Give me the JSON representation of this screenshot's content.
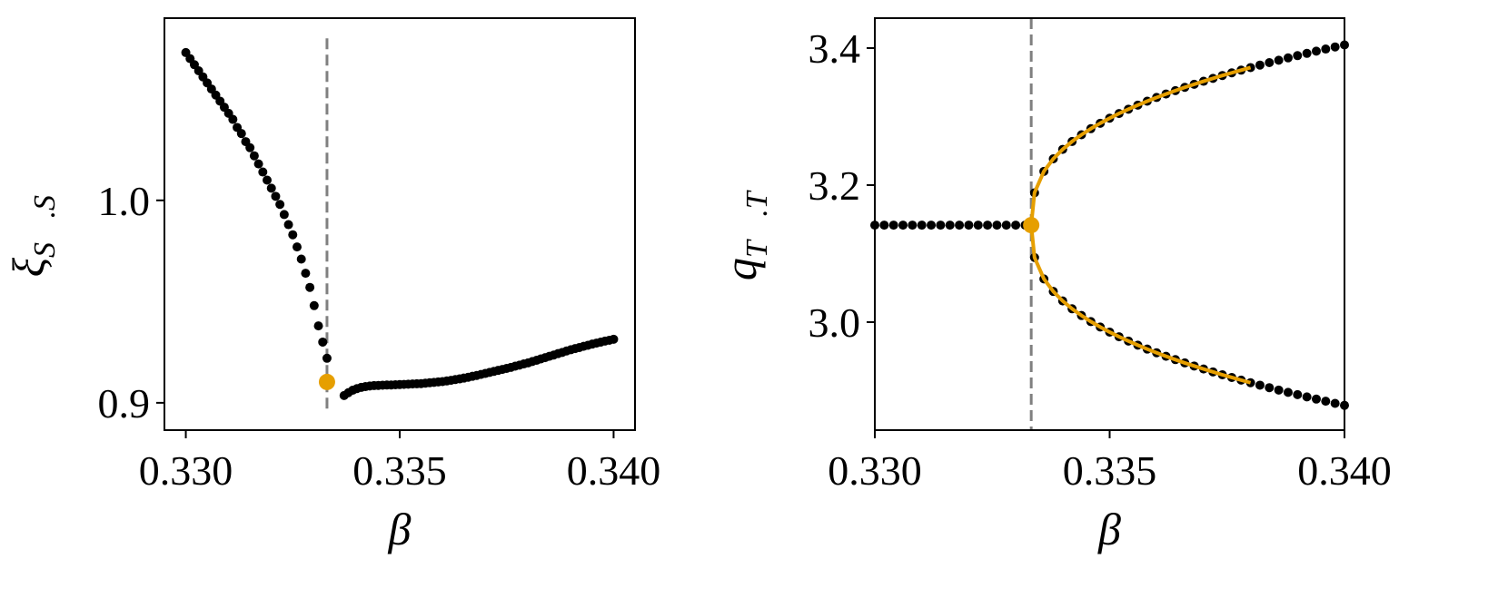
{
  "chart_data": [
    {
      "type": "scatter",
      "xlabel": "β",
      "ylabel": {
        "main": "ξ",
        "sub": "S⃗.S⃗"
      },
      "xlim": [
        0.3295,
        0.3405
      ],
      "ylim": [
        0.8865,
        1.09
      ],
      "xticks": [
        {
          "value": 0.33,
          "label": "0.330"
        },
        {
          "value": 0.335,
          "label": "0.335"
        },
        {
          "value": 0.34,
          "label": "0.340"
        }
      ],
      "yticks": [
        0.9,
        {
          "value": 1.0,
          "label": "1.0"
        }
      ],
      "vline": {
        "x": 0.3333,
        "y_range": [
          0.895,
          1.08
        ],
        "color": "#808080"
      },
      "series": [
        {
          "color": "#000000",
          "x": [
            0.33,
            0.3301,
            0.3302,
            0.3303,
            0.3304,
            0.3305,
            0.3306,
            0.3307,
            0.3308,
            0.3309,
            0.331,
            0.3311,
            0.3312,
            0.3313,
            0.3314,
            0.3315,
            0.3316,
            0.3317,
            0.3318,
            0.3319,
            0.332,
            0.3321,
            0.3322,
            0.3323,
            0.3324,
            0.3325,
            0.3326,
            0.3327,
            0.3328,
            0.3329,
            0.333,
            0.3331,
            0.3332,
            0.3333
          ],
          "values": [
            1.073,
            1.07,
            1.067,
            1.064,
            1.061,
            1.058,
            1.055,
            1.052,
            1.049,
            1.046,
            1.043,
            1.04,
            1.036,
            1.033,
            1.029,
            1.026,
            1.022,
            1.018,
            1.014,
            1.01,
            1.006,
            1.002,
            0.998,
            0.993,
            0.988,
            0.983,
            0.977,
            0.971,
            0.964,
            0.957,
            0.948,
            0.938,
            0.93,
            0.922
          ]
        },
        {
          "color": "#000000",
          "x": [
            0.3337,
            0.3338,
            0.3339,
            0.334,
            0.3341,
            0.3342,
            0.3343,
            0.3344,
            0.3345,
            0.3346,
            0.3347,
            0.3348,
            0.3349,
            0.335,
            0.3351,
            0.3352,
            0.3353,
            0.3354,
            0.3355,
            0.3356,
            0.3357,
            0.3358,
            0.3359,
            0.336,
            0.3361,
            0.3362,
            0.3363,
            0.3364,
            0.3365,
            0.3366,
            0.3367,
            0.3368,
            0.3369,
            0.337,
            0.3371,
            0.3372,
            0.3373,
            0.3374,
            0.3375,
            0.3376,
            0.3377,
            0.3378,
            0.3379,
            0.338,
            0.3381,
            0.3382,
            0.3383,
            0.3384,
            0.3385,
            0.3386,
            0.3387,
            0.3388,
            0.3389,
            0.339,
            0.3391,
            0.3392,
            0.3393,
            0.3394,
            0.3395,
            0.3396,
            0.3397,
            0.3398,
            0.3399,
            0.34
          ],
          "values": [
            0.9036,
            0.905,
            0.9062,
            0.907,
            0.9076,
            0.908,
            0.9083,
            0.9085,
            0.9086,
            0.9087,
            0.9088,
            0.9088,
            0.9089,
            0.909,
            0.9091,
            0.9092,
            0.9093,
            0.9094,
            0.9095,
            0.9097,
            0.9099,
            0.9101,
            0.9103,
            0.9105,
            0.9108,
            0.9111,
            0.9115,
            0.9118,
            0.9122,
            0.9126,
            0.9131,
            0.9135,
            0.914,
            0.9145,
            0.915,
            0.9155,
            0.916,
            0.9165,
            0.917,
            0.9175,
            0.9181,
            0.9186,
            0.9192,
            0.9197,
            0.9204,
            0.921,
            0.9217,
            0.9223,
            0.923,
            0.9236,
            0.9243,
            0.9249,
            0.9256,
            0.9262,
            0.9268,
            0.9273,
            0.9279,
            0.9284,
            0.929,
            0.9295,
            0.93,
            0.9305,
            0.9309,
            0.9314
          ]
        },
        {
          "color": "#e69f00",
          "size": "large",
          "x": [
            0.3333
          ],
          "values": [
            0.9103
          ]
        }
      ]
    },
    {
      "type": "scatter",
      "xlabel": "β",
      "ylabel": {
        "main": "q",
        "sub": "T⃗.T⃗"
      },
      "xlim": [
        0.33,
        0.34
      ],
      "ylim": [
        2.8424,
        3.4437
      ],
      "xticks": [
        {
          "value": 0.33,
          "label": "0.330"
        },
        {
          "value": 0.335,
          "label": "0.335"
        },
        {
          "value": 0.34,
          "label": "0.340"
        }
      ],
      "yticks": [
        {
          "value": 3.0,
          "label": "3.0"
        },
        {
          "value": 3.2,
          "label": "3.2"
        },
        {
          "value": 3.4,
          "label": "3.4"
        }
      ],
      "vline": {
        "x": 0.33333,
        "color": "#808080"
      },
      "series": [
        {
          "color": "#000000",
          "x": [
            0.33,
            0.3302,
            0.3304,
            0.3306,
            0.3308,
            0.331,
            0.3312,
            0.3314,
            0.3316,
            0.3318,
            0.332,
            0.3322,
            0.3324,
            0.3326,
            0.3328,
            0.333,
            0.3332
          ],
          "values": [
            3.1416,
            3.1416,
            3.1416,
            3.1416,
            3.1416,
            3.1416,
            3.1416,
            3.1416,
            3.1416,
            3.1416,
            3.1416,
            3.1416,
            3.1416,
            3.1416,
            3.1416,
            3.1416,
            3.1416
          ]
        },
        {
          "color": "#000000",
          "x": [
            0.3334,
            0.3336,
            0.3338,
            0.334,
            0.3342,
            0.3344,
            0.3346,
            0.3348,
            0.335,
            0.3352,
            0.3354,
            0.3356,
            0.3358,
            0.336,
            0.3362,
            0.3364,
            0.3366,
            0.3368,
            0.337,
            0.3372,
            0.3374,
            0.3376,
            0.3378,
            0.338,
            0.3382,
            0.3384,
            0.3386,
            0.3388,
            0.339,
            0.3392,
            0.3394,
            0.3396,
            0.3398,
            0.34
          ],
          "values": [
            3.1888,
            3.2201,
            3.2384,
            3.2522,
            3.2637,
            3.2735,
            3.2824,
            3.2903,
            3.2977,
            3.3045,
            3.3108,
            3.3168,
            3.3225,
            3.3279,
            3.333,
            3.3379,
            3.3427,
            3.3472,
            3.3516,
            3.3558,
            3.36,
            3.3639,
            3.3678,
            3.3716,
            3.3752,
            3.3788,
            3.3823,
            3.3857,
            3.389,
            3.3923,
            3.3955,
            3.3986,
            3.4017,
            3.4046
          ]
        },
        {
          "color": "#000000",
          "x": [
            0.3334,
            0.3336,
            0.3338,
            0.334,
            0.3342,
            0.3344,
            0.3346,
            0.3348,
            0.335,
            0.3352,
            0.3354,
            0.3356,
            0.3358,
            0.336,
            0.3362,
            0.3364,
            0.3366,
            0.3368,
            0.337,
            0.3372,
            0.3374,
            0.3376,
            0.3378,
            0.338,
            0.3382,
            0.3384,
            0.3386,
            0.3388,
            0.339,
            0.3392,
            0.3394,
            0.3396,
            0.3398,
            0.34
          ],
          "values": [
            3.0944,
            3.0631,
            3.0448,
            3.031,
            3.0195,
            3.0097,
            3.0008,
            2.9929,
            2.9855,
            2.9787,
            2.9724,
            2.9664,
            2.9607,
            2.9553,
            2.9502,
            2.9453,
            2.9405,
            2.936,
            2.9316,
            2.9274,
            2.9232,
            2.9193,
            2.9154,
            2.9116,
            2.908,
            2.9044,
            2.9009,
            2.8975,
            2.8942,
            2.8909,
            2.8877,
            2.8846,
            2.8815,
            2.8786
          ]
        },
        {
          "color": "#e69f00",
          "type": "line",
          "x": [
            0.33333,
            0.3334,
            0.3336,
            0.3338,
            0.334,
            0.3342,
            0.3344,
            0.3346,
            0.3348,
            0.335,
            0.3352,
            0.3354,
            0.3356,
            0.3358,
            0.336,
            0.3362,
            0.3364,
            0.3366,
            0.3368,
            0.337,
            0.3372,
            0.3374,
            0.3376,
            0.3378,
            0.338
          ],
          "values": [
            3.1416,
            3.1888,
            3.2201,
            3.2384,
            3.2522,
            3.2637,
            3.2735,
            3.2824,
            3.2903,
            3.2977,
            3.3045,
            3.3108,
            3.3168,
            3.3225,
            3.3279,
            3.333,
            3.3379,
            3.3427,
            3.3472,
            3.3516,
            3.3558,
            3.36,
            3.3639,
            3.3678,
            3.3716
          ]
        },
        {
          "color": "#e69f00",
          "type": "line",
          "x": [
            0.33333,
            0.3334,
            0.3336,
            0.3338,
            0.334,
            0.3342,
            0.3344,
            0.3346,
            0.3348,
            0.335,
            0.3352,
            0.3354,
            0.3356,
            0.3358,
            0.336,
            0.3362,
            0.3364,
            0.3366,
            0.3368,
            0.337,
            0.3372,
            0.3374,
            0.3376,
            0.3378,
            0.338
          ],
          "values": [
            3.1416,
            3.0944,
            3.0631,
            3.0448,
            3.031,
            3.0195,
            3.0097,
            3.0008,
            2.9929,
            2.9855,
            2.9787,
            2.9724,
            2.9664,
            2.9607,
            2.9553,
            2.9502,
            2.9453,
            2.9405,
            2.936,
            2.9316,
            2.9274,
            2.9232,
            2.9193,
            2.9154,
            2.9116
          ]
        },
        {
          "color": "#e69f00",
          "size": "large",
          "x": [
            0.33333
          ],
          "values": [
            3.1416
          ]
        }
      ]
    }
  ]
}
